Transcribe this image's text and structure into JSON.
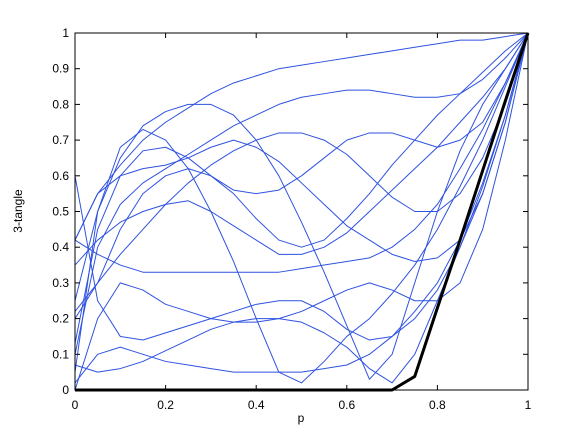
{
  "chart_data": {
    "type": "line",
    "xlabel": "p",
    "ylabel": "3-tangle",
    "x": [
      0,
      0.05,
      0.1,
      0.15,
      0.2,
      0.25,
      0.3,
      0.35,
      0.4,
      0.45,
      0.5,
      0.55,
      0.6,
      0.65,
      0.7,
      0.75,
      0.8,
      0.85,
      0.9,
      0.95,
      1
    ],
    "xlim": [
      0,
      1
    ],
    "xticks": [
      0,
      0.2,
      0.4,
      0.6,
      0.8,
      1
    ],
    "ylim": [
      0,
      1
    ],
    "yticks": [
      0,
      0.1,
      0.2,
      0.3,
      0.4,
      0.5,
      0.6,
      0.7,
      0.8,
      0.9,
      1
    ],
    "grid": false,
    "series": [
      {
        "color": "#2f52e0",
        "values": [
          0.42,
          0.55,
          0.63,
          0.7,
          0.75,
          0.79,
          0.83,
          0.86,
          0.88,
          0.9,
          0.91,
          0.92,
          0.93,
          0.94,
          0.95,
          0.96,
          0.97,
          0.98,
          0.98,
          0.99,
          1
        ]
      },
      {
        "color": "#2f52e0",
        "values": [
          0.25,
          0.5,
          0.65,
          0.74,
          0.78,
          0.8,
          0.8,
          0.77,
          0.7,
          0.6,
          0.47,
          0.33,
          0.18,
          0.03,
          0.1,
          0.3,
          0.5,
          0.67,
          0.8,
          0.9,
          1
        ]
      },
      {
        "color": "#2f52e0",
        "values": [
          0.05,
          0.5,
          0.68,
          0.73,
          0.7,
          0.62,
          0.5,
          0.36,
          0.2,
          0.05,
          0.02,
          0.08,
          0.15,
          0.2,
          0.27,
          0.35,
          0.45,
          0.57,
          0.7,
          0.85,
          1
        ]
      },
      {
        "color": "#2f52e0",
        "values": [
          0.02,
          0.1,
          0.12,
          0.1,
          0.08,
          0.07,
          0.06,
          0.05,
          0.05,
          0.05,
          0.05,
          0.06,
          0.07,
          0.1,
          0.15,
          0.22,
          0.3,
          0.42,
          0.58,
          0.77,
          1
        ]
      },
      {
        "color": "#2f52e0",
        "values": [
          0.42,
          0.38,
          0.35,
          0.33,
          0.33,
          0.33,
          0.33,
          0.33,
          0.33,
          0.33,
          0.34,
          0.35,
          0.36,
          0.37,
          0.4,
          0.45,
          0.52,
          0.62,
          0.73,
          0.86,
          1
        ]
      },
      {
        "color": "#2f52e0",
        "values": [
          0.2,
          0.3,
          0.45,
          0.55,
          0.6,
          0.62,
          0.6,
          0.55,
          0.48,
          0.42,
          0.4,
          0.42,
          0.48,
          0.55,
          0.63,
          0.7,
          0.77,
          0.83,
          0.89,
          0.95,
          1
        ]
      },
      {
        "color": "#2f52e0",
        "values": [
          0.6,
          0.25,
          0.15,
          0.14,
          0.16,
          0.18,
          0.2,
          0.22,
          0.24,
          0.25,
          0.25,
          0.22,
          0.17,
          0.14,
          0.15,
          0.2,
          0.28,
          0.4,
          0.55,
          0.75,
          1
        ]
      },
      {
        "color": "#2f52e0",
        "values": [
          0.1,
          0.4,
          0.52,
          0.58,
          0.62,
          0.66,
          0.7,
          0.74,
          0.77,
          0.8,
          0.82,
          0.83,
          0.84,
          0.84,
          0.83,
          0.82,
          0.82,
          0.83,
          0.87,
          0.93,
          1
        ]
      },
      {
        "color": "#2f52e0",
        "values": [
          0.35,
          0.42,
          0.47,
          0.5,
          0.52,
          0.53,
          0.5,
          0.46,
          0.42,
          0.38,
          0.38,
          0.4,
          0.44,
          0.5,
          0.56,
          0.62,
          0.68,
          0.75,
          0.82,
          0.9,
          1
        ]
      },
      {
        "color": "#2f52e0",
        "values": [
          0.0,
          0.2,
          0.3,
          0.28,
          0.24,
          0.22,
          0.2,
          0.19,
          0.19,
          0.2,
          0.22,
          0.25,
          0.28,
          0.3,
          0.28,
          0.25,
          0.25,
          0.3,
          0.45,
          0.7,
          1
        ]
      },
      {
        "color": "#2f52e0",
        "values": [
          0.22,
          0.3,
          0.38,
          0.45,
          0.52,
          0.58,
          0.63,
          0.67,
          0.7,
          0.72,
          0.72,
          0.7,
          0.66,
          0.6,
          0.54,
          0.5,
          0.5,
          0.55,
          0.65,
          0.8,
          1
        ]
      },
      {
        "color": "#2f52e0",
        "values": [
          0.07,
          0.05,
          0.06,
          0.08,
          0.11,
          0.14,
          0.17,
          0.19,
          0.2,
          0.2,
          0.19,
          0.16,
          0.12,
          0.06,
          0.02,
          0.1,
          0.25,
          0.4,
          0.57,
          0.77,
          1
        ]
      },
      {
        "color": "#2f52e0",
        "values": [
          0.13,
          0.45,
          0.6,
          0.67,
          0.68,
          0.65,
          0.6,
          0.56,
          0.55,
          0.56,
          0.6,
          0.65,
          0.7,
          0.72,
          0.72,
          0.7,
          0.68,
          0.7,
          0.75,
          0.86,
          1
        ]
      },
      {
        "color": "#2f52e0",
        "values": [
          0.42,
          0.55,
          0.6,
          0.62,
          0.63,
          0.65,
          0.68,
          0.7,
          0.68,
          0.64,
          0.58,
          0.52,
          0.46,
          0.42,
          0.38,
          0.36,
          0.37,
          0.42,
          0.55,
          0.75,
          1
        ]
      },
      {
        "color": "#000000",
        "values": [
          0,
          0,
          0,
          0,
          0,
          0,
          0,
          0,
          0,
          0,
          0,
          0,
          0,
          0,
          0,
          0.038,
          0.23,
          0.42,
          0.615,
          0.81,
          1
        ]
      }
    ]
  }
}
